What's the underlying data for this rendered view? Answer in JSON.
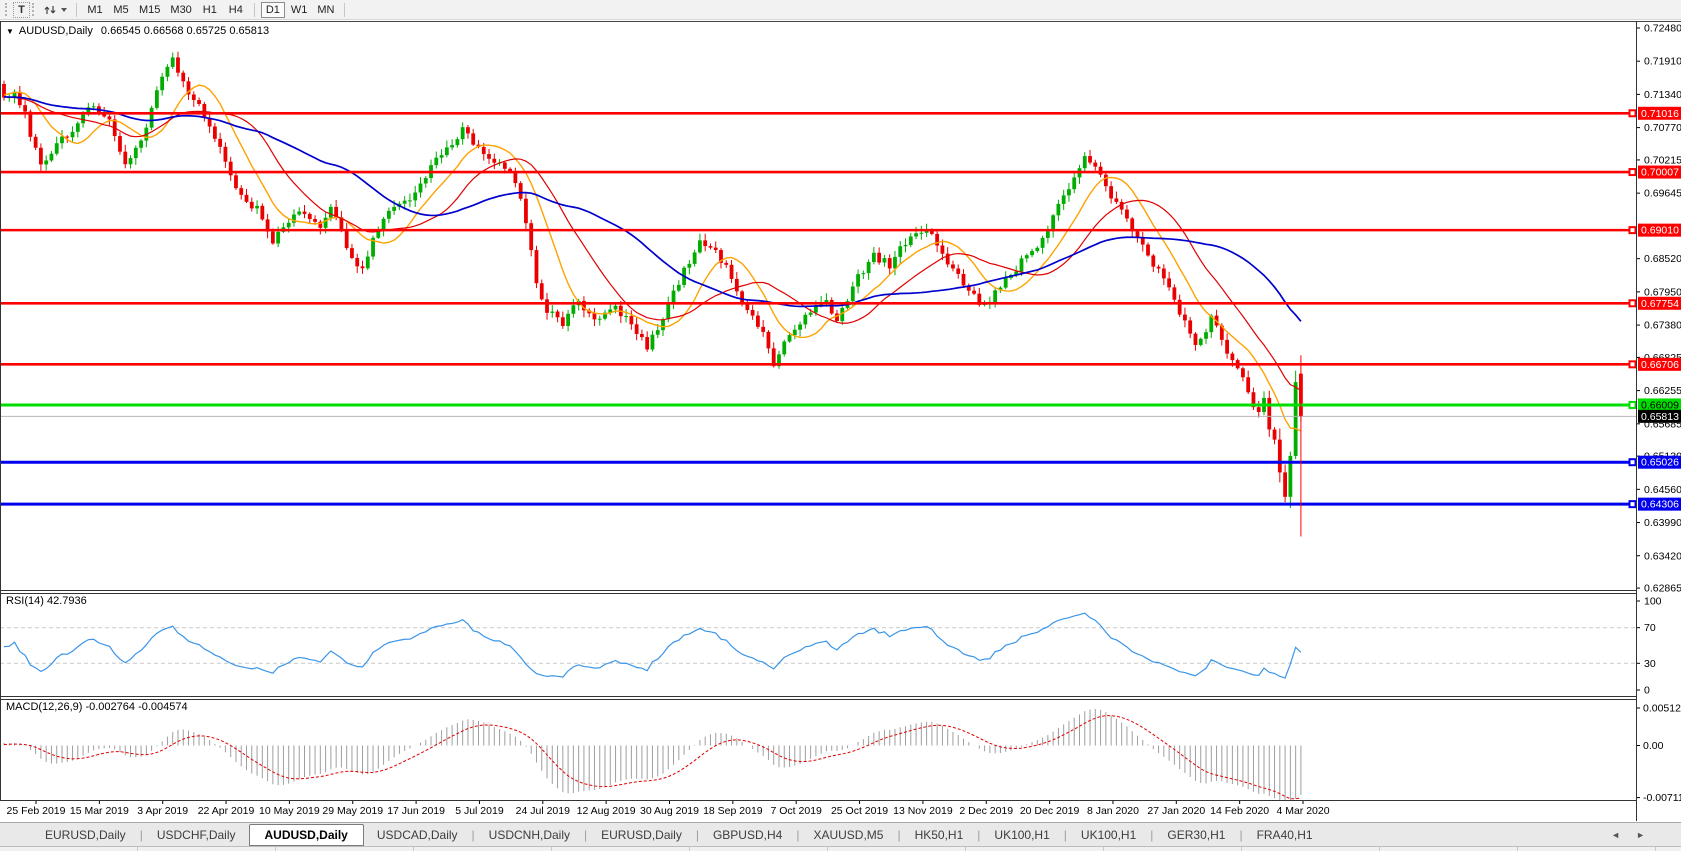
{
  "toolbar": {
    "text_tool_label": "T",
    "timeframes": [
      "M1",
      "M5",
      "M15",
      "M30",
      "H1",
      "H4",
      "D1",
      "W1",
      "MN"
    ],
    "active_timeframe": "D1"
  },
  "chart": {
    "title_symbol": "AUDUSD,Daily",
    "ohlc_text": "0.66545 0.66568 0.65725 0.65813",
    "dropdown_triangle": "▼"
  },
  "chart_data": {
    "type": "candlestick",
    "symbol": "AUDUSD",
    "timeframe": "Daily",
    "bar_count": 247,
    "last_bar": {
      "open": 0.66545,
      "high": 0.66568,
      "low": 0.65725,
      "close": 0.65813
    },
    "price_axis": {
      "max": 0.7248,
      "min": 0.62865,
      "labels": [
        "0.72480",
        "0.71910",
        "0.71340",
        "0.70770",
        "0.70215",
        "0.69645",
        "0.68520",
        "0.67950",
        "0.67380",
        "0.66825",
        "0.66255",
        "0.65685",
        "0.65130",
        "0.64560",
        "0.63990",
        "0.63420",
        "0.62865"
      ]
    },
    "close_waypoints": [
      [
        0,
        0.7125
      ],
      [
        2,
        0.7142
      ],
      [
        4,
        0.7098
      ],
      [
        7,
        0.7008
      ],
      [
        10,
        0.7052
      ],
      [
        13,
        0.7075
      ],
      [
        17,
        0.7118
      ],
      [
        20,
        0.7086
      ],
      [
        23,
        0.7008
      ],
      [
        27,
        0.7076
      ],
      [
        30,
        0.7168
      ],
      [
        32,
        0.7192
      ],
      [
        34,
        0.7152
      ],
      [
        37,
        0.7112
      ],
      [
        40,
        0.7062
      ],
      [
        43,
        0.6992
      ],
      [
        45,
        0.6958
      ],
      [
        48,
        0.6936
      ],
      [
        51,
        0.6882
      ],
      [
        53,
        0.6906
      ],
      [
        56,
        0.6932
      ],
      [
        60,
        0.6906
      ],
      [
        62,
        0.6942
      ],
      [
        66,
        0.6852
      ],
      [
        68,
        0.6834
      ],
      [
        71,
        0.6906
      ],
      [
        74,
        0.6942
      ],
      [
        78,
        0.6962
      ],
      [
        81,
        0.7012
      ],
      [
        84,
        0.7042
      ],
      [
        87,
        0.7075
      ],
      [
        90,
        0.7042
      ],
      [
        94,
        0.7012
      ],
      [
        97,
        0.6988
      ],
      [
        99,
        0.6912
      ],
      [
        101,
        0.6808
      ],
      [
        103,
        0.6762
      ],
      [
        106,
        0.6742
      ],
      [
        109,
        0.6778
      ],
      [
        112,
        0.6746
      ],
      [
        116,
        0.6772
      ],
      [
        119,
        0.6736
      ],
      [
        122,
        0.6702
      ],
      [
        125,
        0.6748
      ],
      [
        128,
        0.6812
      ],
      [
        132,
        0.6882
      ],
      [
        135,
        0.6862
      ],
      [
        138,
        0.6822
      ],
      [
        141,
        0.6762
      ],
      [
        144,
        0.6722
      ],
      [
        146,
        0.6672
      ],
      [
        149,
        0.6722
      ],
      [
        152,
        0.6756
      ],
      [
        156,
        0.6782
      ],
      [
        158,
        0.6746
      ],
      [
        162,
        0.6822
      ],
      [
        165,
        0.6856
      ],
      [
        168,
        0.6842
      ],
      [
        172,
        0.6892
      ],
      [
        175,
        0.6906
      ],
      [
        178,
        0.6862
      ],
      [
        181,
        0.6822
      ],
      [
        183,
        0.6792
      ],
      [
        186,
        0.6772
      ],
      [
        190,
        0.6812
      ],
      [
        193,
        0.6846
      ],
      [
        197,
        0.6882
      ],
      [
        200,
        0.6942
      ],
      [
        203,
        0.6992
      ],
      [
        205,
        0.7026
      ],
      [
        208,
        0.7002
      ],
      [
        210,
        0.6962
      ],
      [
        213,
        0.6922
      ],
      [
        216,
        0.6872
      ],
      [
        218,
        0.6842
      ],
      [
        221,
        0.6802
      ],
      [
        224,
        0.6742
      ],
      [
        226,
        0.6702
      ],
      [
        228,
        0.6732
      ],
      [
        229,
        0.6752
      ],
      [
        231,
        0.6712
      ],
      [
        233,
        0.6672
      ],
      [
        235,
        0.6642
      ],
      [
        237,
        0.6602
      ],
      [
        238,
        0.6586
      ],
      [
        239,
        0.6618
      ],
      [
        240,
        0.6556
      ],
      [
        241,
        0.6542
      ],
      [
        242,
        0.6482
      ],
      [
        243,
        0.6445
      ],
      [
        244,
        0.6512
      ],
      [
        245,
        0.664
      ],
      [
        246,
        0.65813
      ]
    ],
    "colors": {
      "bull": "#00ad00",
      "bear": "#ea0000"
    },
    "moving_averages": [
      {
        "period": 10,
        "color": "#ffa200",
        "width": 1.4
      },
      {
        "period": 20,
        "color": "#e00000",
        "width": 1.2
      },
      {
        "period": 40,
        "color": "#0000cc",
        "width": 1.7
      }
    ],
    "horizontal_lines": [
      {
        "price": 0.71016,
        "label": "0.71016",
        "color": "#ff0000",
        "text_color": "#ffffff",
        "width": 2.6
      },
      {
        "price": 0.70007,
        "label": "0.70007",
        "color": "#ff0000",
        "text_color": "#ffffff",
        "width": 2.6
      },
      {
        "price": 0.6901,
        "label": "0.69010",
        "color": "#ff0000",
        "text_color": "#ffffff",
        "width": 2.6
      },
      {
        "price": 0.67754,
        "label": "0.67754",
        "color": "#ff0000",
        "text_color": "#ffffff",
        "width": 2.6
      },
      {
        "price": 0.66706,
        "label": "0.66706",
        "color": "#ff0000",
        "text_color": "#ffffff",
        "width": 2.6
      },
      {
        "price": 0.66009,
        "label": "0.66009",
        "color": "#00dd00",
        "text_color": "#000000",
        "width": 3
      },
      {
        "price": 0.65026,
        "label": "0.65026",
        "color": "#0000ee",
        "text_color": "#ffffff",
        "width": 3
      },
      {
        "price": 0.64306,
        "label": "0.64306",
        "color": "#0000ee",
        "text_color": "#ffffff",
        "width": 3
      }
    ],
    "current_price_line": {
      "price": 0.65813,
      "label": "0.65813",
      "color": "#b6b6b6"
    },
    "vertical_line": {
      "bar": 246,
      "price_from": 0.6686,
      "price_to": 0.6375,
      "color": "#ff0000"
    },
    "rsi": {
      "label": "RSI(14) 42.7936",
      "period": 14,
      "current": 42.7936,
      "color": "#3a95e8",
      "levels": [
        70,
        30
      ],
      "axis_labels": [
        {
          "text": "100",
          "value": 100
        },
        {
          "text": "70",
          "value": 70
        },
        {
          "text": "30",
          "value": 30
        },
        {
          "text": "0",
          "value": 0
        }
      ]
    },
    "macd": {
      "label": "MACD(12,26,9) -0.002764 -0.004574",
      "fast": 12,
      "slow": 26,
      "signal_period": 9,
      "current_macd": -0.002764,
      "current_signal": -0.004574,
      "histogram_color": "#9e9e9e",
      "signal_color": "#e00000",
      "axis_labels": [
        {
          "text": "0.005121",
          "value": 0.005121
        },
        {
          "text": "0.00",
          "value": 0
        },
        {
          "text": "-0.007115",
          "value": -0.007115
        }
      ]
    },
    "date_ticks": [
      "25 Feb 2019",
      "15 Mar 2019",
      "3 Apr 2019",
      "22 Apr 2019",
      "10 May 2019",
      "29 May 2019",
      "17 Jun 2019",
      "5 Jul 2019",
      "24 Jul 2019",
      "12 Aug 2019",
      "30 Aug 2019",
      "18 Sep 2019",
      "7 Oct 2019",
      "25 Oct 2019",
      "13 Nov 2019",
      "2 Dec 2019",
      "20 Dec 2019",
      "8 Jan 2020",
      "27 Jan 2020",
      "14 Feb 2020",
      "4 Mar 2020"
    ]
  },
  "tabbar": {
    "separator": "|",
    "scroll_left": "◄",
    "scroll_right": "►",
    "tabs": [
      {
        "label": "EURUSD,Daily"
      },
      {
        "label": "USDCHF,Daily"
      },
      {
        "label": "AUDUSD,Daily",
        "active": true
      },
      {
        "label": "USDCAD,Daily"
      },
      {
        "label": "USDCNH,Daily"
      },
      {
        "label": "EURUSD,Daily"
      },
      {
        "label": "GBPUSD,H4"
      },
      {
        "label": "XAUUSD,M5"
      },
      {
        "label": "HK50,H1"
      },
      {
        "label": "UK100,H1"
      },
      {
        "label": "UK100,H1"
      },
      {
        "label": "GER30,H1"
      },
      {
        "label": "FRA40,H1"
      }
    ]
  }
}
